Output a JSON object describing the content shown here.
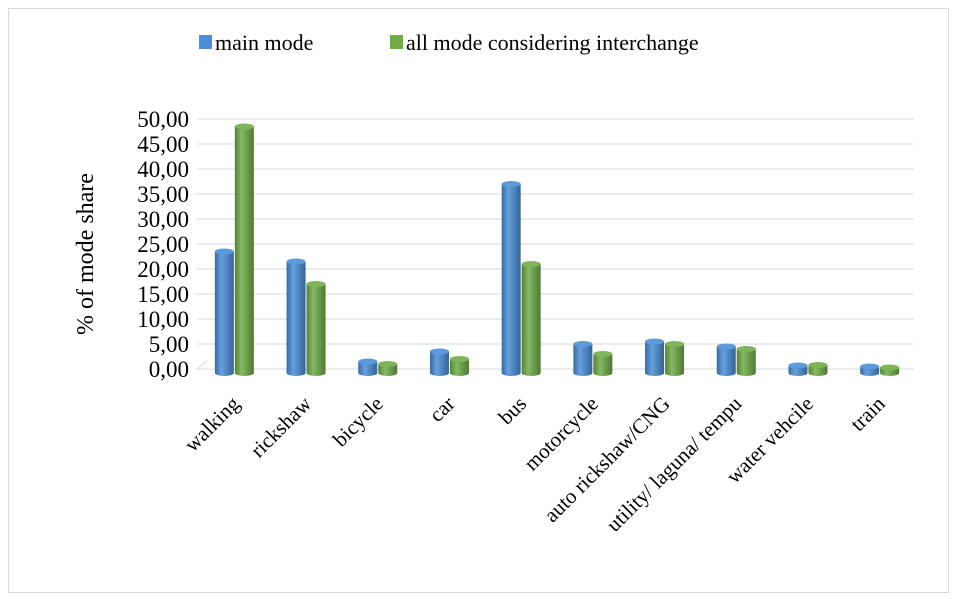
{
  "chart_data": {
    "type": "bar",
    "title": "",
    "xlabel": "",
    "ylabel": "% of mode share",
    "ylim": [
      0,
      50
    ],
    "yticks": [
      "0,00",
      "5,00",
      "10,00",
      "15,00",
      "20,00",
      "25,00",
      "30,00",
      "35,00",
      "40,00",
      "45,00",
      "50,00"
    ],
    "grid": true,
    "legend_position": "top",
    "categories": [
      "walking",
      "rickshaw",
      "bicycle",
      "car",
      "bus",
      "motorcycle",
      "auto rickshaw/CNG",
      "utility/ laguna/ tempu",
      "water vehcile",
      "train"
    ],
    "series": [
      {
        "name": "main mode",
        "color": "#4a8fd8",
        "values": [
          23.5,
          21.5,
          1.5,
          3.5,
          37.0,
          5.0,
          5.5,
          4.5,
          0.7,
          0.5
        ]
      },
      {
        "name": "all mode considering interchange",
        "color": "#70ad47",
        "values": [
          48.5,
          17.0,
          1.0,
          2.0,
          21.0,
          3.0,
          5.0,
          4.0,
          0.8,
          0.3
        ]
      }
    ]
  }
}
